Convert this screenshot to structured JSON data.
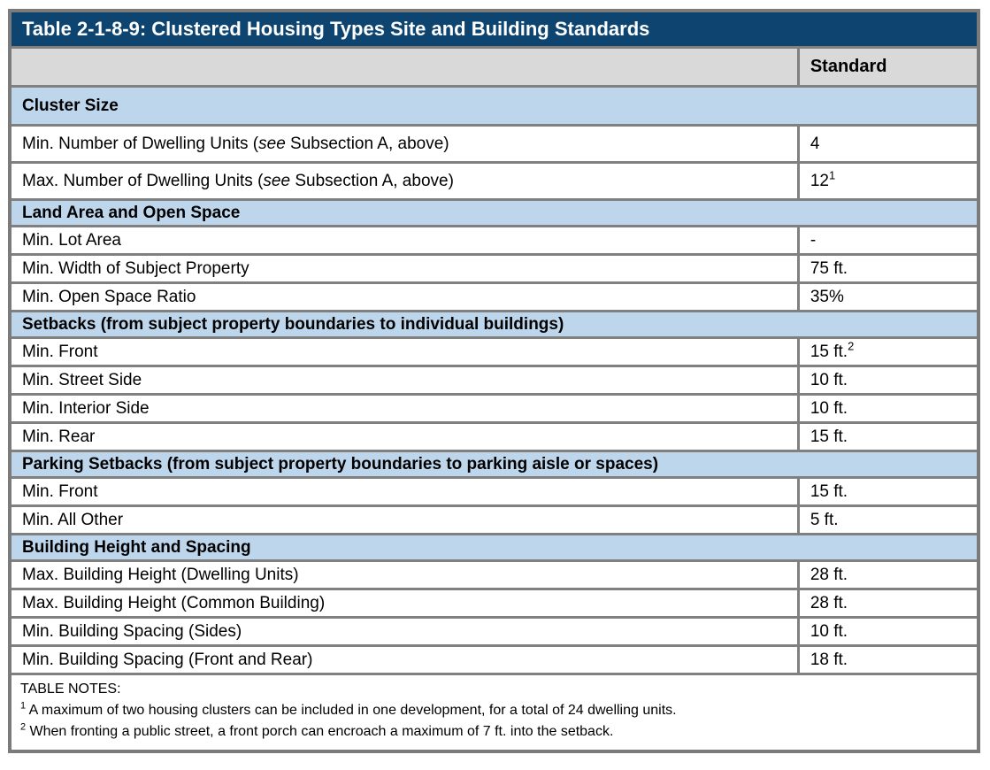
{
  "colors": {
    "title_bg": "#0E4470",
    "title_text": "#FFFFFF",
    "header_bg": "#D9D9D9",
    "section_bg": "#BDD6EC",
    "border": "#808080"
  },
  "title": "Table 2-1-8-9: Clustered Housing Types Site and Building Standards",
  "columns": {
    "parameter": "",
    "standard": "Standard"
  },
  "sections": [
    {
      "heading": "Cluster Size",
      "rows": [
        {
          "label_parts": [
            {
              "text": "Min. Number of Dwelling Units ("
            },
            {
              "text": "see",
              "italic": true
            },
            {
              "text": " Subsection A, above)"
            }
          ],
          "standard": "4",
          "standard_sup": ""
        },
        {
          "label_parts": [
            {
              "text": "Max. Number of Dwelling Units ("
            },
            {
              "text": "see",
              "italic": true
            },
            {
              "text": " Subsection A, above)"
            }
          ],
          "standard": "12",
          "standard_sup": "1"
        }
      ]
    },
    {
      "heading": "Land Area and Open Space",
      "rows": [
        {
          "label_parts": [
            {
              "text": "Min. Lot Area"
            }
          ],
          "standard": "-",
          "standard_sup": ""
        },
        {
          "label_parts": [
            {
              "text": "Min. Width of Subject Property"
            }
          ],
          "standard": "75 ft.",
          "standard_sup": ""
        },
        {
          "label_parts": [
            {
              "text": "Min. Open Space Ratio"
            }
          ],
          "standard": "35%",
          "standard_sup": ""
        }
      ]
    },
    {
      "heading": "Setbacks (from subject property boundaries to individual buildings)",
      "rows": [
        {
          "label_parts": [
            {
              "text": "Min. Front"
            }
          ],
          "standard": "15 ft.",
          "standard_sup": "2"
        },
        {
          "label_parts": [
            {
              "text": "Min. Street Side"
            }
          ],
          "standard": "10 ft.",
          "standard_sup": ""
        },
        {
          "label_parts": [
            {
              "text": "Min. Interior Side"
            }
          ],
          "standard": "10 ft.",
          "standard_sup": ""
        },
        {
          "label_parts": [
            {
              "text": "Min. Rear"
            }
          ],
          "standard": "15 ft.",
          "standard_sup": ""
        }
      ]
    },
    {
      "heading": "Parking Setbacks (from subject property boundaries to parking aisle or spaces)",
      "rows": [
        {
          "label_parts": [
            {
              "text": "Min. Front"
            }
          ],
          "standard": "15 ft.",
          "standard_sup": ""
        },
        {
          "label_parts": [
            {
              "text": "Min. All Other"
            }
          ],
          "standard": "5 ft.",
          "standard_sup": ""
        }
      ]
    },
    {
      "heading": "Building Height and Spacing",
      "rows": [
        {
          "label_parts": [
            {
              "text": "Max. Building Height (Dwelling Units)"
            }
          ],
          "standard": "28 ft.",
          "standard_sup": ""
        },
        {
          "label_parts": [
            {
              "text": "Max. Building Height (Common Building)"
            }
          ],
          "standard": "28 ft.",
          "standard_sup": ""
        },
        {
          "label_parts": [
            {
              "text": "Min. Building Spacing (Sides)"
            }
          ],
          "standard": "10 ft.",
          "standard_sup": ""
        },
        {
          "label_parts": [
            {
              "text": "Min. Building Spacing (Front and Rear)"
            }
          ],
          "standard": "18 ft.",
          "standard_sup": ""
        }
      ]
    }
  ],
  "notes": {
    "heading": "TABLE NOTES:",
    "items": [
      {
        "sup": "1",
        "text": " A maximum of two housing clusters can be included in one development, for a total of 24 dwelling units."
      },
      {
        "sup": "2",
        "text": " When fronting a public street, a front porch can encroach a maximum of 7 ft. into the setback."
      }
    ]
  }
}
